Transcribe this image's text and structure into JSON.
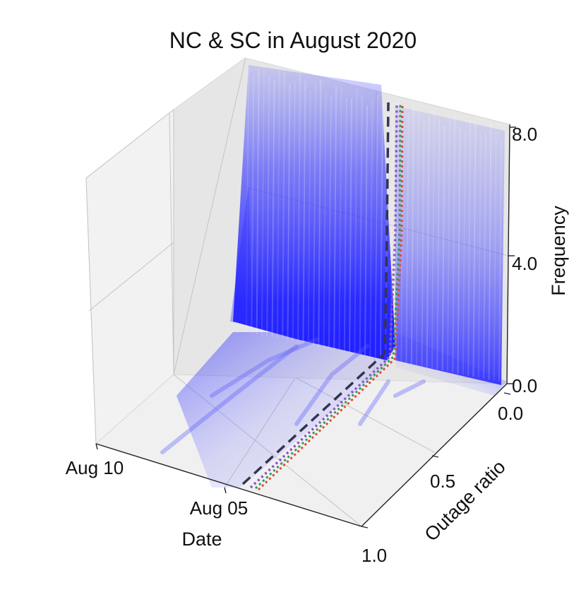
{
  "chart_data": {
    "type": "area",
    "projection": "3d",
    "title": "NC & SC in August 2020",
    "xlabel": "Date",
    "ylabel": "Outage ratio",
    "zlabel": "Frequency",
    "x_ticks": [
      "Aug 10",
      "Aug 05"
    ],
    "y_ticks": [
      "0.0",
      "0.5",
      "1.0"
    ],
    "z_ticks": [
      "0.0",
      "4.0",
      "8.0"
    ],
    "xlim": [
      "Aug 11",
      "Aug 03"
    ],
    "ylim": [
      0.0,
      1.0
    ],
    "zlim": [
      0.0,
      8.5
    ],
    "grid": true,
    "legend": "none",
    "colors": {
      "surface": "#1f1fff",
      "dashed_line": "#333355",
      "dotted_red": "#e0483a",
      "dotted_green": "#2e9c47",
      "dotted_purple": "#8f53cf",
      "dotted_blue": "#5a5acf"
    },
    "series": [
      {
        "kind": "surface",
        "note_values": "frequency density per outage ratio over time",
        "profile": [
          {
            "outage_ratio": 0.0,
            "frequency": 0.4
          },
          {
            "outage_ratio": 0.05,
            "frequency": 8.4
          },
          {
            "outage_ratio": 0.5,
            "frequency": 8.3
          },
          {
            "outage_ratio": 1.0,
            "frequency": 8.0
          }
        ]
      },
      {
        "kind": "dashed",
        "outage_ratio": 0.45,
        "frequency_max": 8.0
      },
      {
        "kind": "dotted",
        "outage_ratio": 0.47,
        "frequency_max": 8.0
      },
      {
        "kind": "dotted",
        "outage_ratio": 0.49,
        "frequency_max": 8.0
      }
    ]
  }
}
